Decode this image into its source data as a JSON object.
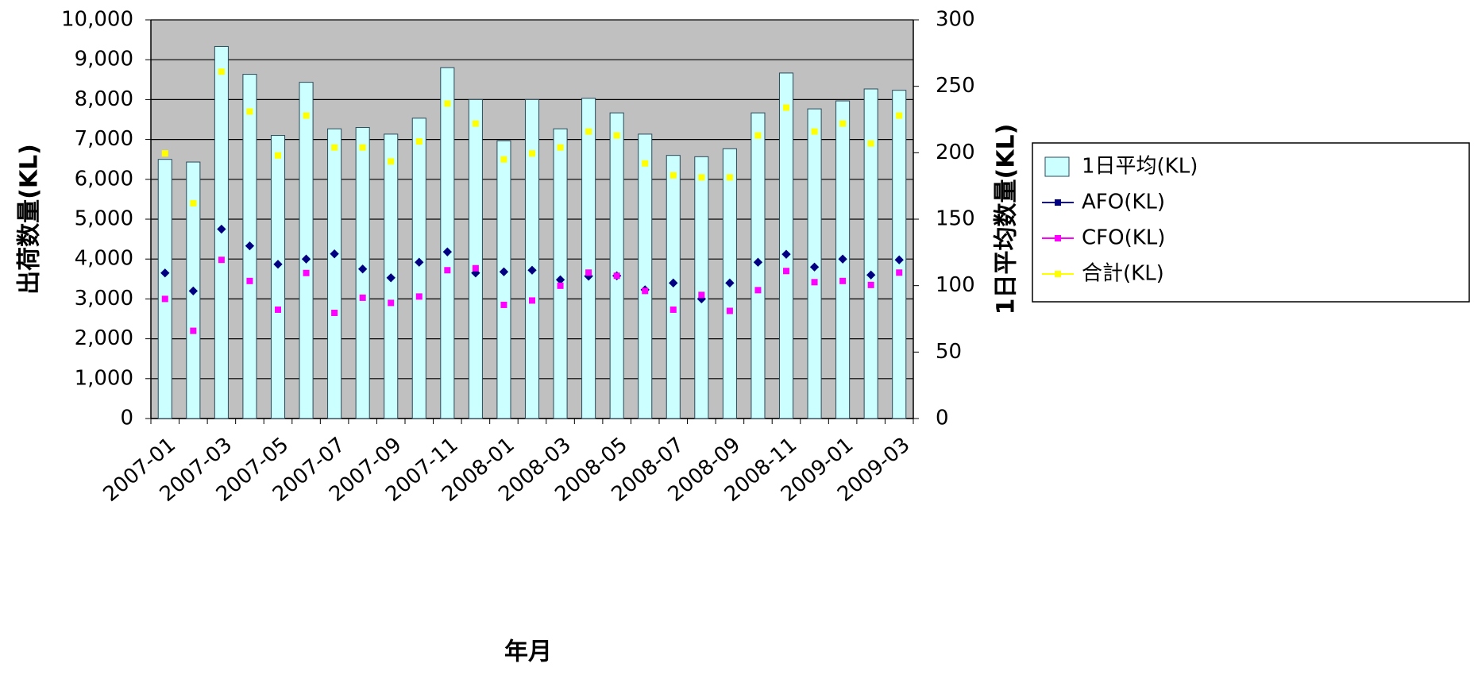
{
  "chart_data": {
    "type": "combo",
    "x_label": "年月",
    "y_label": "出荷数量(KL)",
    "y2_label": "1日平均数量(KL)",
    "categories": [
      "2007-01",
      null,
      "2007-03",
      null,
      "2007-05",
      null,
      "2007-07",
      null,
      "2007-09",
      null,
      "2007-11",
      null,
      "2008-01",
      null,
      "2008-03",
      null,
      "2008-05",
      null,
      "2008-07",
      null,
      "2008-09",
      null,
      "2008-11",
      null,
      "2009-01",
      null,
      "2009-03"
    ],
    "series": [
      {
        "name": "1日平均(KL)",
        "type": "bar",
        "axis": "y2",
        "color": "#ccffff",
        "values": [
          195,
          193,
          280,
          259,
          213,
          253,
          218,
          219,
          214,
          226,
          264,
          240,
          209,
          240,
          218,
          241,
          230,
          214,
          198,
          197,
          203,
          230,
          260,
          233,
          239,
          248,
          247
        ]
      },
      {
        "name": "AFO(KL)",
        "type": "line",
        "color": "#000080",
        "values": [
          3650,
          3200,
          4750,
          4330,
          3870,
          4000,
          4130,
          3750,
          3530,
          3920,
          4180,
          3650,
          3680,
          3720,
          3480,
          3570,
          3580,
          3230,
          3400,
          3000,
          3400,
          3920,
          4120,
          3800,
          4000,
          3600,
          3980
        ]
      },
      {
        "name": "CFO(KL)",
        "type": "line",
        "color": "#ff00ff",
        "values": [
          3000,
          2200,
          3980,
          3450,
          2730,
          3650,
          2650,
          3030,
          2900,
          3060,
          3720,
          3770,
          2850,
          2960,
          3330,
          3660,
          3580,
          3200,
          2730,
          3100,
          2700,
          3220,
          3700,
          3420,
          3450,
          3350,
          3660
        ]
      },
      {
        "name": "合計(KL)",
        "type": "line",
        "color": "#ffff00",
        "values": [
          6650,
          5400,
          8700,
          7700,
          6600,
          7600,
          6800,
          6800,
          6450,
          6950,
          7900,
          7400,
          6500,
          6650,
          6800,
          7200,
          7100,
          6400,
          6100,
          6050,
          6050,
          7100,
          7800,
          7200,
          7400,
          6900,
          7600
        ]
      }
    ],
    "ylim": [
      0,
      10000
    ],
    "yticks": [
      0,
      {
        "value": 1000,
        "label": "1,000"
      },
      {
        "value": 2000,
        "label": "2,000"
      },
      {
        "value": 3000,
        "label": "3,000"
      },
      {
        "value": 4000,
        "label": "4,000"
      },
      {
        "value": 5000,
        "label": "5,000"
      },
      {
        "value": 6000,
        "label": "6,000"
      },
      {
        "value": 7000,
        "label": "7,000"
      },
      {
        "value": 8000,
        "label": "8,000"
      },
      {
        "value": 9000,
        "label": "9,000"
      },
      {
        "value": 10000,
        "label": "10,000"
      }
    ],
    "y2lim": [
      0,
      300
    ],
    "y2ticks": [
      0,
      50,
      100,
      150,
      200,
      250,
      300
    ],
    "grid": true,
    "plot_background": "#c0c0c0",
    "legend": "right"
  }
}
